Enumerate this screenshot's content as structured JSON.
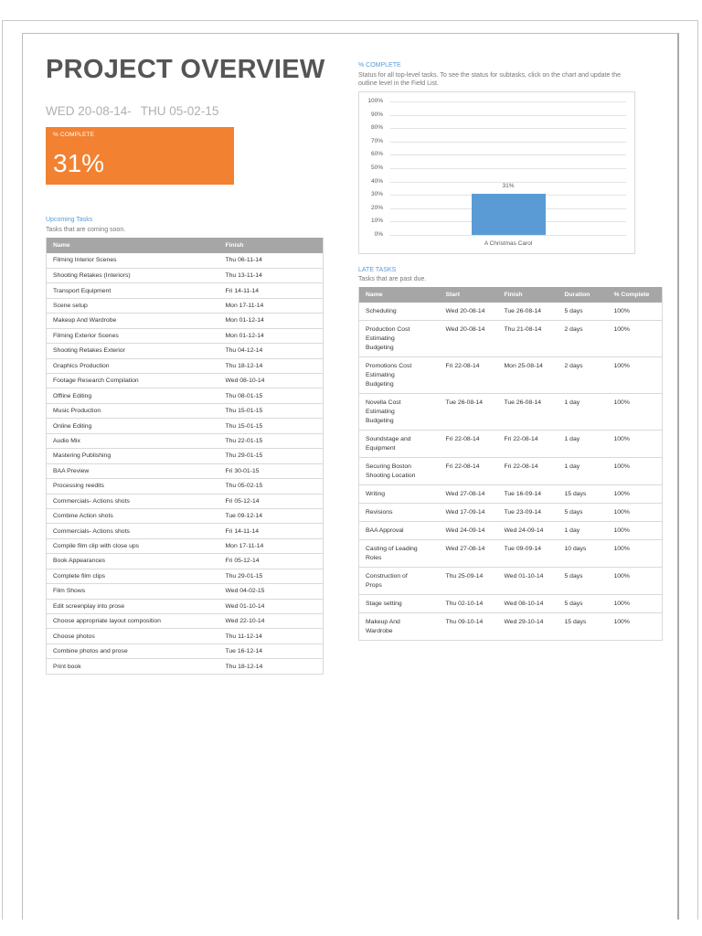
{
  "page": {
    "title": "PROJECT OVERVIEW",
    "date_start": "WED 20-08-14-",
    "date_end": "THU 05-02-15"
  },
  "kpi": {
    "label": "% COMPLETE",
    "value": "31%",
    "color": "#f28132"
  },
  "chart_section": {
    "heading": "% COMPLETE",
    "description_line1": "Status for all top-level tasks. To see the status for subtasks, click on the chart and update the",
    "description_line2": "outline level in the Field List."
  },
  "chart_data": {
    "type": "bar",
    "title": "% COMPLETE",
    "categories": [
      "A Christmas Carol"
    ],
    "values": [
      31
    ],
    "data_labels": [
      "31%"
    ],
    "xlabel": "",
    "ylabel": "",
    "ylim": [
      0,
      100
    ],
    "yticks": [
      "100%",
      "90%",
      "80%",
      "70%",
      "60%",
      "50%",
      "40%",
      "30%",
      "20%",
      "10%",
      "0%"
    ],
    "grid": true,
    "bar_color": "#5b9bd5",
    "legend": null
  },
  "upcoming": {
    "heading": "Upcoming Tasks",
    "subheading": "Tasks that are coming soon.",
    "columns": [
      "Name",
      "Finish"
    ],
    "rows": [
      [
        "Filming Interior Scenes",
        "Thu 06-11-14"
      ],
      [
        "Shooting Retakes (Interiors)",
        "Thu 13-11-14"
      ],
      [
        "Transport Equipment",
        "Fri 14-11-14"
      ],
      [
        "Scene setup",
        "Mon 17-11-14"
      ],
      [
        "Makeup And Wardrobe",
        "Mon 01-12-14"
      ],
      [
        "Filming Exterior Scenes",
        "Mon 01-12-14"
      ],
      [
        "Shooting Retakes Exterior",
        "Thu 04-12-14"
      ],
      [
        "Graphics Production",
        "Thu 18-12-14"
      ],
      [
        "Footage Research  Compilation",
        "Wed 08-10-14"
      ],
      [
        "Offline Editing",
        "Thu 08-01-15"
      ],
      [
        "Music Production",
        "Thu 15-01-15"
      ],
      [
        "Online Editing",
        "Thu 15-01-15"
      ],
      [
        "Audio Mix",
        "Thu 22-01-15"
      ],
      [
        "Mastering  Publishing",
        "Thu 29-01-15"
      ],
      [
        "BAA Preview",
        "Fri 30-01-15"
      ],
      [
        "Processing reedits",
        "Thu 05-02-15"
      ],
      [
        "Commercials- Actions shots",
        "Fri 05-12-14"
      ],
      [
        "Combine Action shots",
        "Tue 09-12-14"
      ],
      [
        "Commercials- Actions shots",
        "Fri 14-11-14"
      ],
      [
        "Compile film clip with close ups",
        "Mon 17-11-14"
      ],
      [
        "Book Appearances",
        "Fri 05-12-14"
      ],
      [
        "Complete film clips",
        "Thu 29-01-15"
      ],
      [
        "Film Shows",
        "Wed 04-02-15"
      ],
      [
        "Edit screenplay into prose",
        "Wed 01-10-14"
      ],
      [
        "Choose appropriate layout  composition",
        "Wed 22-10-14"
      ],
      [
        "Choose photos",
        "Thu 11-12-14"
      ],
      [
        "Combine photos and prose",
        "Tue 16-12-14"
      ],
      [
        "Print book",
        "Thu 18-12-14"
      ]
    ]
  },
  "late": {
    "heading": "LATE TASKS",
    "subheading": "Tasks that are past due.",
    "columns": [
      "Name",
      "Start",
      "Finish",
      "Duration",
      "% Complete"
    ],
    "rows": [
      [
        "Scheduling",
        "Wed 20-08-14",
        "Tue 26-08-14",
        "5 days",
        "100%"
      ],
      [
        "Production Cost\nEstimating\nBudgeting",
        "Wed 20-08-14",
        "Thu 21-08-14",
        "2 days",
        "100%"
      ],
      [
        "Promotions Cost\nEstimating\nBudgeting",
        "Fri 22-08-14",
        "Mon 25-08-14",
        "2 days",
        "100%"
      ],
      [
        "Novella Cost\nEstimating\nBudgeting",
        "Tue 26-08-14",
        "Tue 26-08-14",
        "1 day",
        "100%"
      ],
      [
        "Soundstage and\nEquipment",
        "Fri 22-08-14",
        "Fri 22-08-14",
        "1 day",
        "100%"
      ],
      [
        "Securing Boston\nShooting Location",
        "Fri 22-08-14",
        "Fri 22-08-14",
        "1 day",
        "100%"
      ],
      [
        "Writing",
        "Wed 27-08-14",
        "Tue 16-09-14",
        "15 days",
        "100%"
      ],
      [
        "Revisions",
        "Wed 17-09-14",
        "Tue 23-09-14",
        "5 days",
        "100%"
      ],
      [
        "BAA Approval",
        "Wed 24-09-14",
        "Wed 24-09-14",
        "1 day",
        "100%"
      ],
      [
        "Casting of Leading\nRoles",
        "Wed 27-08-14",
        "Tue 09-09-14",
        "10 days",
        "100%"
      ],
      [
        "Construction of\nProps",
        "Thu 25-09-14",
        "Wed 01-10-14",
        "5 days",
        "100%"
      ],
      [
        "Stage setting",
        "Thu 02-10-14",
        "Wed 08-10-14",
        "5 days",
        "100%"
      ],
      [
        "Makeup And\nWardrobe",
        "Thu 09-10-14",
        "Wed 29-10-14",
        "15 days",
        "100%"
      ]
    ]
  }
}
